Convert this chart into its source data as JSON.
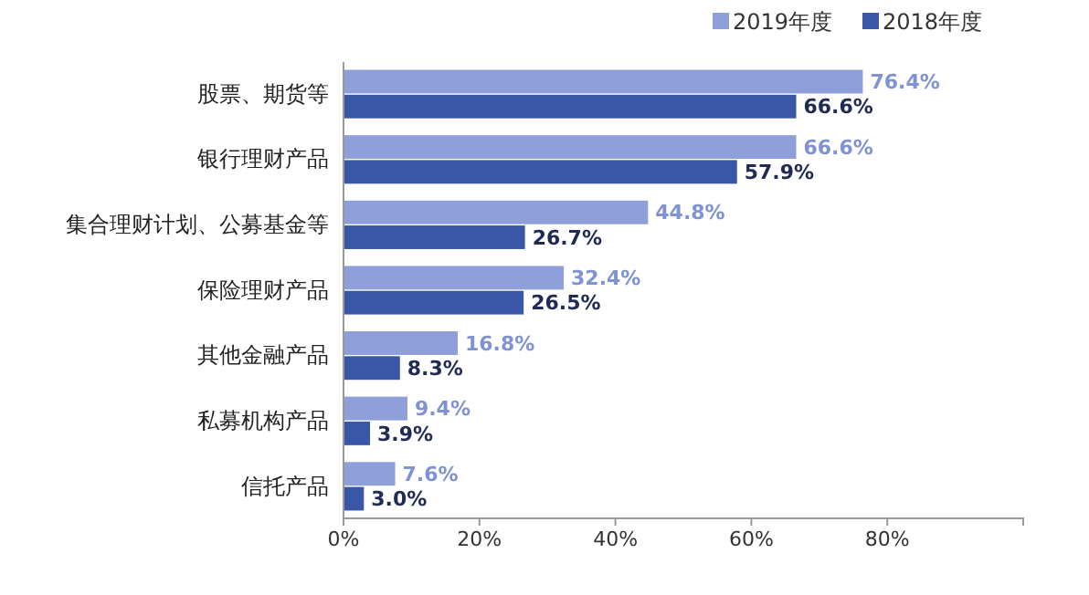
{
  "chart_data": {
    "type": "bar",
    "orientation": "horizontal",
    "categories": [
      "股票、期货等",
      "银行理财产品",
      "集合理财计划、公募基金等",
      "保险理财产品",
      "其他金融产品",
      "私募机构产品",
      "信托产品"
    ],
    "series": [
      {
        "name": "2019年度",
        "color": "#8e9fd9",
        "values": [
          76.4,
          66.6,
          44.8,
          32.4,
          16.8,
          9.4,
          7.6
        ],
        "value_labels": [
          "76.4%",
          "66.6%",
          "44.8%",
          "32.4%",
          "16.8%",
          "9.4%",
          "7.6%"
        ]
      },
      {
        "name": "2018年度",
        "color": "#3a56a6",
        "values": [
          66.6,
          57.9,
          26.7,
          26.5,
          8.3,
          3.9,
          3.0
        ],
        "value_labels": [
          "66.6%",
          "57.9%",
          "26.7%",
          "26.5%",
          "8.3%",
          "3.9%",
          "3.0%"
        ]
      }
    ],
    "xlim": [
      0,
      100
    ],
    "xticks": [
      {
        "value": 0,
        "label": "0%"
      },
      {
        "value": 20,
        "label": "20%"
      },
      {
        "value": 40,
        "label": "40%"
      },
      {
        "value": 60,
        "label": "60%"
      },
      {
        "value": 80,
        "label": "80%"
      }
    ],
    "legend": "top right",
    "grid": false
  }
}
